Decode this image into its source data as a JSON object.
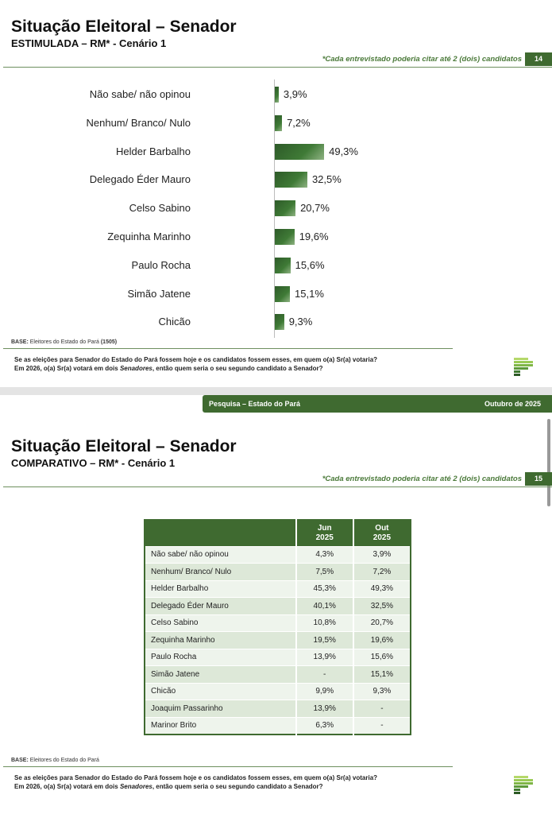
{
  "slide1": {
    "title": "Situação Eleitoral – Senador",
    "subtitle": "ESTIMULADA – RM* - Cenário 1",
    "note": "*Cada entrevistado poderia citar até 2 (dois) candidatos",
    "page": "14",
    "base_label": "BASE:",
    "base_text": " Eleitores do Estado do Pará ",
    "base_n": "(1505)",
    "question1": "Se as eleições para Senador do Estado do Pará fossem hoje e os candidatos fossem esses, em quem o(a) Sr(a) votaria?",
    "question2a": "Em 2026, o(a) Sr(a) votará em dois ",
    "question2b": "Senadores",
    "question2c": ", então quem seria o seu segundo candidato a Senador?"
  },
  "chart_data": {
    "type": "bar",
    "orientation": "horizontal",
    "categories": [
      "Não sabe/ não opinou",
      "Nenhum/ Branco/ Nulo",
      "Helder Barbalho",
      "Delegado Éder Mauro",
      "Celso Sabino",
      "Zequinha Marinho",
      "Paulo Rocha",
      "Simão Jatene",
      "Chicão"
    ],
    "values": [
      3.9,
      7.2,
      49.3,
      32.5,
      20.7,
      19.6,
      15.6,
      15.1,
      9.3
    ],
    "labels": [
      "3,9%",
      "7,2%",
      "49,3%",
      "32,5%",
      "20,7%",
      "19,6%",
      "15,6%",
      "15,1%",
      "9,3%"
    ],
    "unit": "%"
  },
  "slide2": {
    "header_left": "Pesquisa – Estado do Pará",
    "header_right": "Outubro de 2025",
    "title": "Situação Eleitoral – Senador",
    "subtitle": "COMPARATIVO – RM* - Cenário 1",
    "note": "*Cada entrevistado poderia citar até 2 (dois) candidatos",
    "page": "15",
    "base_label": "BASE:",
    "base_text": " Eleitores do Estado do Pará",
    "question1": "Se as eleições para Senador do Estado do Pará fossem hoje e os candidatos fossem esses, em quem o(a) Sr(a) votaria?",
    "question2a": "Em 2026, o(a) Sr(a) votará em dois ",
    "question2b": "Senadores",
    "question2c": ", então quem seria o seu segundo candidato a Senador?",
    "table": {
      "headers": [
        [
          "",
          ""
        ],
        [
          "Jun",
          "2025"
        ],
        [
          "Out",
          "2025"
        ]
      ],
      "rows": [
        [
          "Não sabe/ não opinou",
          "4,3%",
          "3,9%"
        ],
        [
          "Nenhum/ Branco/ Nulo",
          "7,5%",
          "7,2%"
        ],
        [
          "Helder Barbalho",
          "45,3%",
          "49,3%"
        ],
        [
          "Delegado Éder Mauro",
          "40,1%",
          "32,5%"
        ],
        [
          "Celso Sabino",
          "10,8%",
          "20,7%"
        ],
        [
          "Zequinha Marinho",
          "19,5%",
          "19,6%"
        ],
        [
          "Paulo Rocha",
          "13,9%",
          "15,6%"
        ],
        [
          "Simão Jatene",
          "-",
          "15,1%"
        ],
        [
          "Chicão",
          "9,9%",
          "9,3%"
        ],
        [
          "Joaquim Passarinho",
          "13,9%",
          "-"
        ],
        [
          "Marinor Brito",
          "6,3%",
          "-"
        ]
      ]
    }
  },
  "colors": {
    "brand": "#3f6a30"
  }
}
